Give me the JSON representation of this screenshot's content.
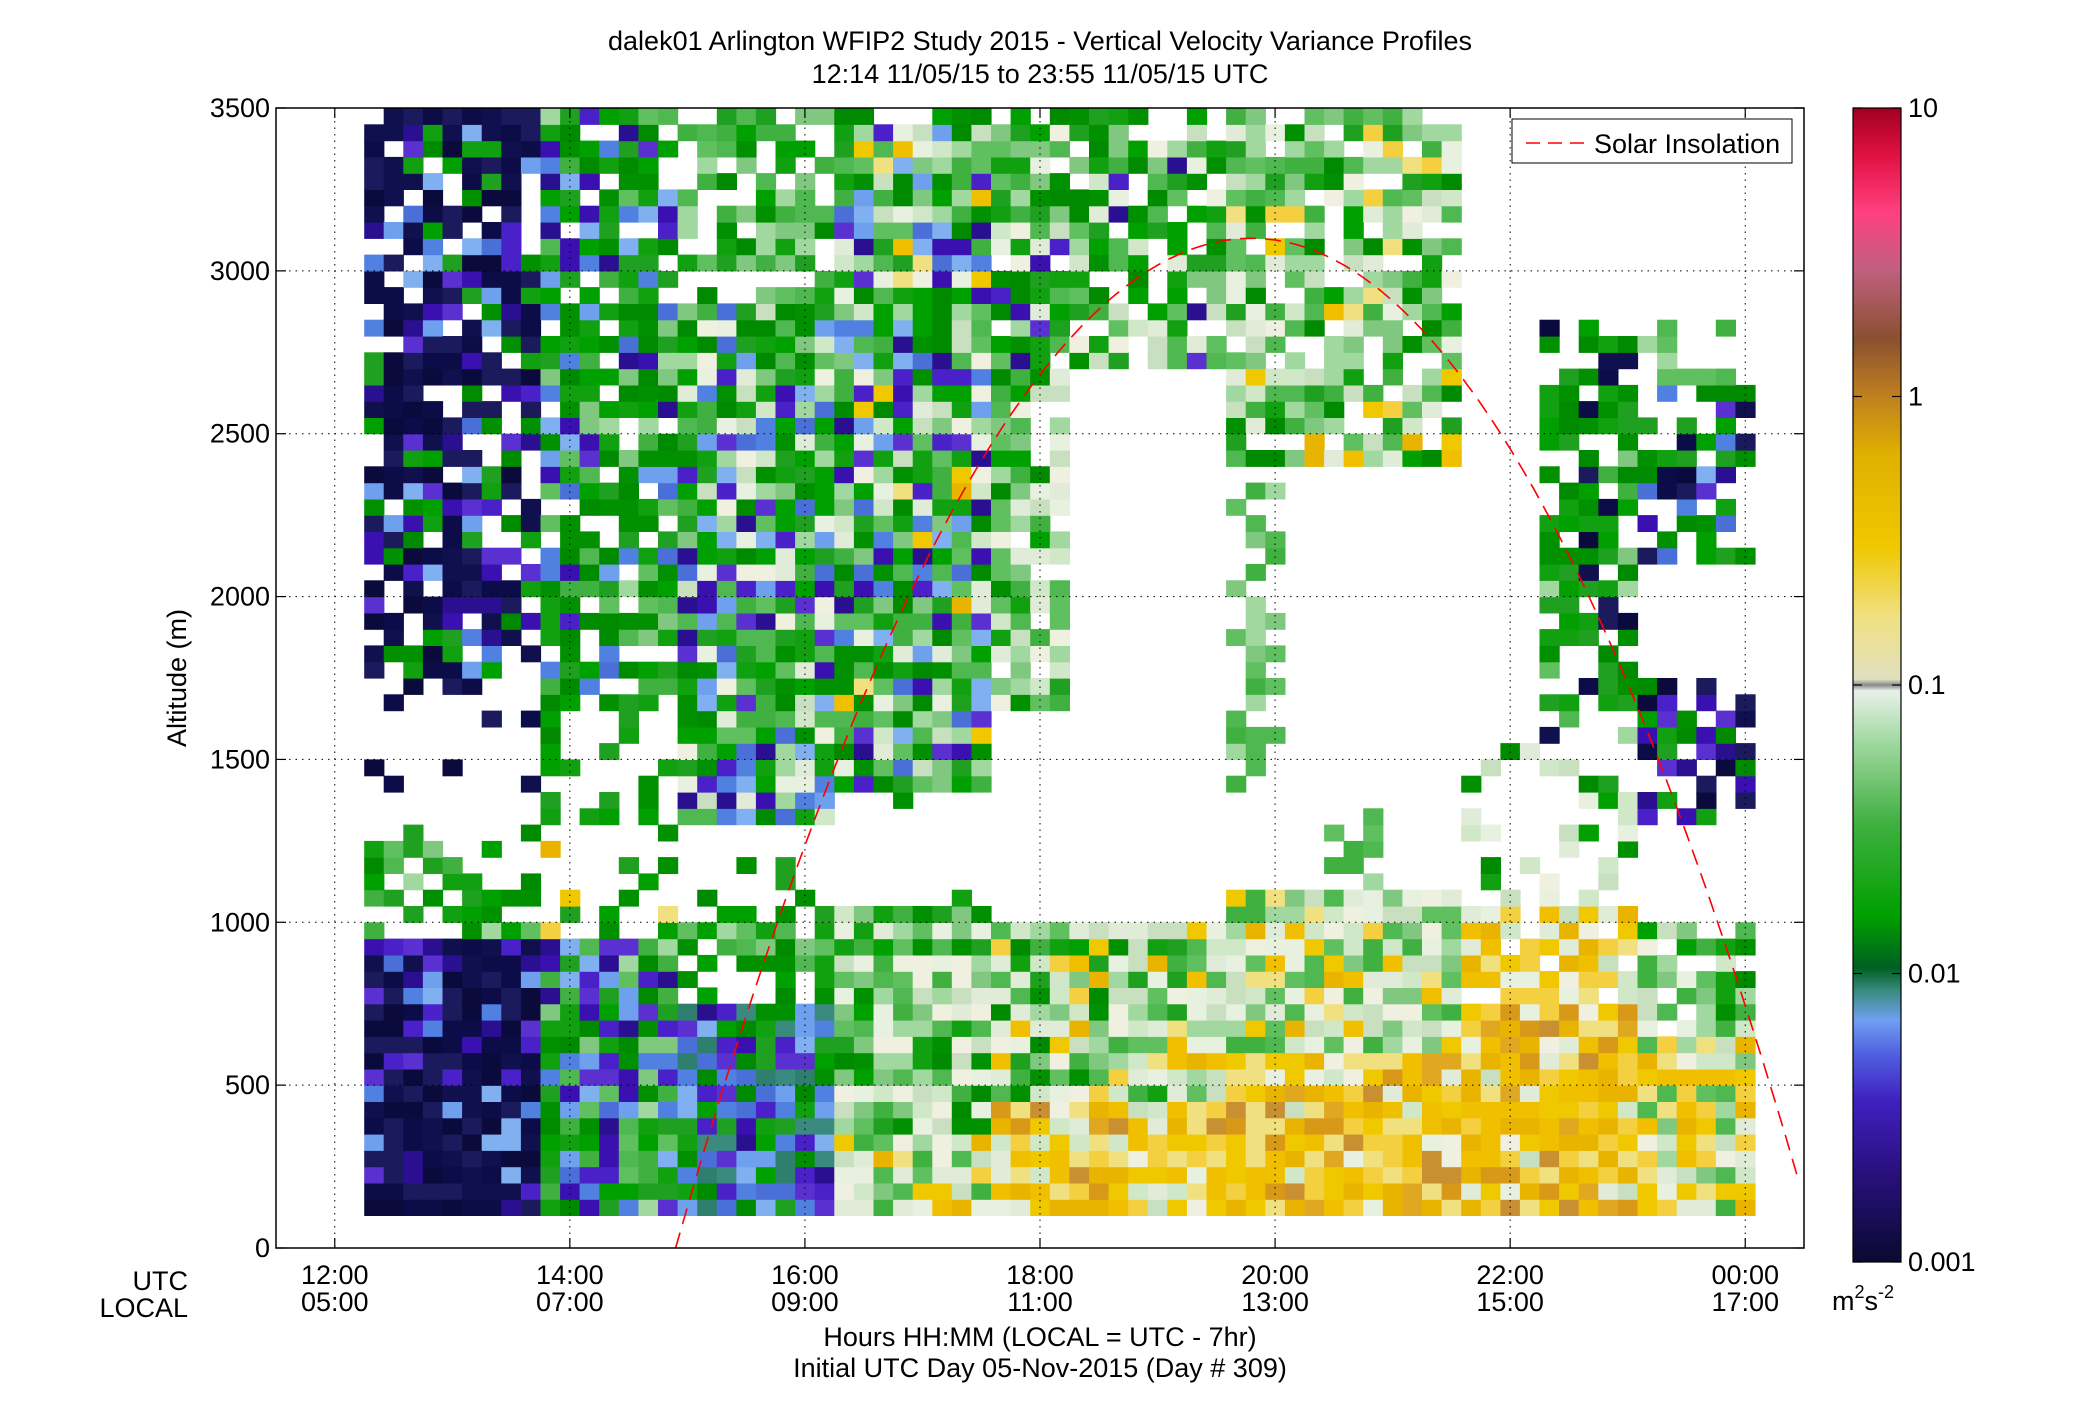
{
  "chart_data": {
    "type": "heatmap",
    "title": "dalek01 Arlington WFIP2 Study 2015 - Vertical Velocity Variance Profiles",
    "subtitle": "12:14 11/05/15 to 23:55 11/05/15  UTC",
    "xlabel": "Hours HH:MM  (LOCAL = UTC - 7hr)",
    "xlabel2": "Initial UTC Day 05-Nov-2015 (Day # 309)",
    "ylabel": "Altitude (m)",
    "x_row_label_utc": "UTC",
    "x_row_label_local": "LOCAL",
    "x_ticks_utc": [
      "12:00",
      "14:00",
      "16:00",
      "18:00",
      "20:00",
      "22:00",
      "00:00"
    ],
    "x_ticks_local": [
      "05:00",
      "07:00",
      "09:00",
      "11:00",
      "13:00",
      "15:00",
      "17:00"
    ],
    "x_tick_hours": [
      12,
      14,
      16,
      18,
      20,
      22,
      24
    ],
    "xlim": [
      11.5,
      24.5
    ],
    "y_ticks": [
      "0",
      "500",
      "1000",
      "1500",
      "2000",
      "2500",
      "3000",
      "3500"
    ],
    "y_tick_values": [
      0,
      500,
      1000,
      1500,
      2000,
      2500,
      3000,
      3500
    ],
    "ylim": [
      0,
      3500
    ],
    "grid": true,
    "colorbar": {
      "scale": "log",
      "range": [
        0.001,
        10
      ],
      "ticks": [
        "0.001",
        "0.01",
        "0.1",
        "1",
        "10"
      ],
      "unit": "m",
      "unit_sup1": "2",
      "unit_mid": "s",
      "unit_sup2": "-2"
    },
    "legend": {
      "label": "Solar Insolation",
      "position": "top-right",
      "color": "#ff0000"
    },
    "solar_insolation_curve": {
      "start_hour": 14.9,
      "peak_hour": 19.8,
      "peak_altitude": 3100,
      "end_hour": 24.5,
      "end_altitude": 150
    },
    "colors": {
      "very_low": "#0a0a3c",
      "low": "#3a10b0",
      "mid_low": "#6fa0ee",
      "mid": "#00a000",
      "mid_high": "#e8f0e0",
      "high": "#f0c000",
      "very_high": "#c01030"
    }
  }
}
